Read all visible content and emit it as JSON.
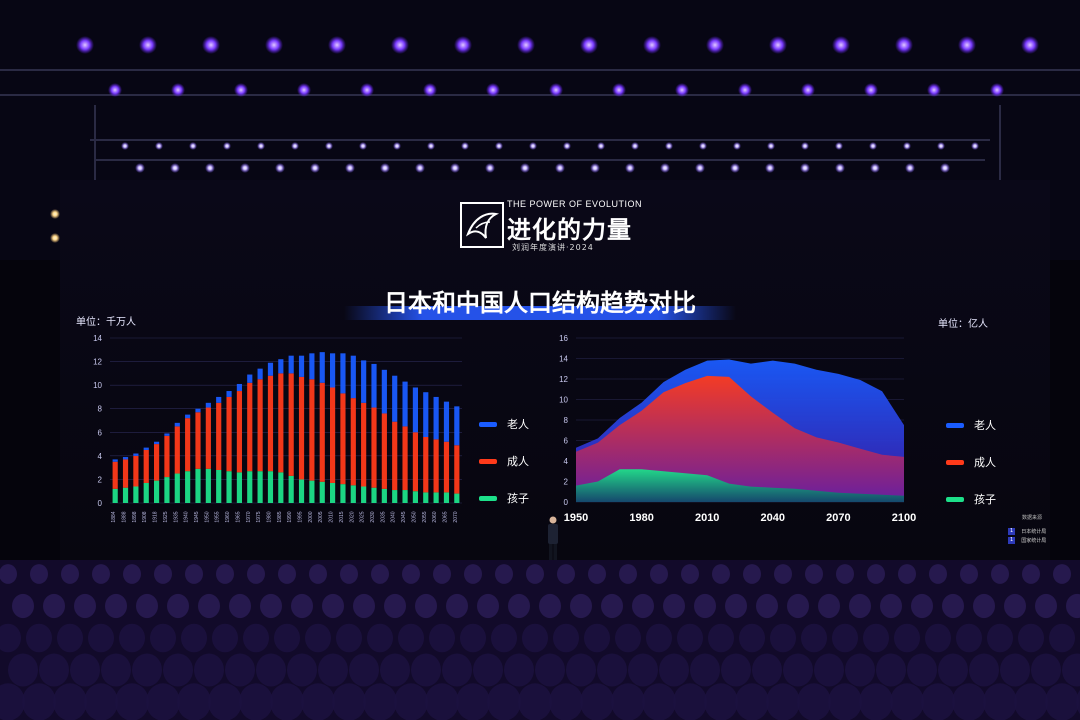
{
  "logo": {
    "tagline": "THE POWER OF EVOLUTION",
    "title": "进化的力量",
    "subtitle": "刘润年度演讲·2024"
  },
  "slide_title": "日本和中国人口结构趋势对比",
  "legend_labels": {
    "elderly": "老人",
    "adults": "成人",
    "children": "孩子"
  },
  "colors": {
    "elderly": "#1a5cff",
    "adults": "#ff3a1a",
    "children": "#1de08a",
    "title_bar": "#285aff"
  },
  "source": {
    "label": "数据来源",
    "items": [
      {
        "index": "1",
        "text": "日本统计局"
      },
      {
        "index": "1",
        "text": "国家统计局"
      }
    ]
  },
  "chart_data": [
    {
      "type": "bar",
      "stacked": true,
      "unit_label": "单位：千万人",
      "categories": [
        "1884",
        "1888",
        "1898",
        "1908",
        "1918",
        "1925",
        "1935",
        "1940",
        "1945",
        "1950",
        "1955",
        "1960",
        "1965",
        "1970",
        "1975",
        "1980",
        "1985",
        "1990",
        "1995",
        "2000",
        "2005",
        "2010",
        "2015",
        "2020",
        "2025",
        "2030",
        "2035",
        "2040",
        "2045",
        "2050",
        "2055",
        "2060",
        "2065",
        "2070"
      ],
      "series": [
        {
          "name": "孩子",
          "values": [
            1.2,
            1.3,
            1.4,
            1.7,
            1.9,
            2.2,
            2.5,
            2.7,
            2.9,
            2.9,
            2.8,
            2.7,
            2.6,
            2.7,
            2.7,
            2.7,
            2.6,
            2.3,
            2.0,
            1.9,
            1.8,
            1.7,
            1.6,
            1.5,
            1.4,
            1.3,
            1.2,
            1.1,
            1.1,
            1.0,
            0.9,
            0.9,
            0.9,
            0.8
          ]
        },
        {
          "name": "成人",
          "values": [
            2.3,
            2.4,
            2.6,
            2.8,
            3.1,
            3.5,
            4.0,
            4.5,
            4.8,
            5.2,
            5.7,
            6.3,
            6.9,
            7.5,
            7.8,
            8.1,
            8.4,
            8.7,
            8.7,
            8.6,
            8.4,
            8.1,
            7.7,
            7.4,
            7.1,
            6.8,
            6.4,
            5.8,
            5.4,
            5.0,
            4.7,
            4.5,
            4.3,
            4.1
          ]
        },
        {
          "name": "老人",
          "values": [
            0.2,
            0.2,
            0.2,
            0.2,
            0.2,
            0.2,
            0.3,
            0.3,
            0.3,
            0.4,
            0.5,
            0.5,
            0.6,
            0.7,
            0.9,
            1.1,
            1.2,
            1.5,
            1.8,
            2.2,
            2.6,
            2.9,
            3.4,
            3.6,
            3.6,
            3.7,
            3.7,
            3.9,
            3.8,
            3.8,
            3.8,
            3.6,
            3.4,
            3.3
          ]
        }
      ],
      "ylim": [
        0,
        14
      ],
      "yticks": [
        0,
        2,
        4,
        6,
        8,
        10,
        12,
        14
      ],
      "grid": true,
      "legend_position": "right"
    },
    {
      "type": "area",
      "stacked": true,
      "unit_label": "单位：亿人",
      "x": [
        1950,
        1960,
        1970,
        1980,
        1990,
        2000,
        2010,
        2020,
        2030,
        2040,
        2050,
        2060,
        2070,
        2080,
        2090,
        2100
      ],
      "series": [
        {
          "name": "孩子",
          "values": [
            1.6,
            2.0,
            3.2,
            3.2,
            3.0,
            2.8,
            2.6,
            1.8,
            1.5,
            1.4,
            1.3,
            1.1,
            0.9,
            0.8,
            0.7,
            0.6
          ]
        },
        {
          "name": "成人",
          "values": [
            3.3,
            3.8,
            4.3,
            5.7,
            7.7,
            8.8,
            9.7,
            10.4,
            8.8,
            7.3,
            5.9,
            5.2,
            4.9,
            4.4,
            3.9,
            3.8
          ]
        },
        {
          "name": "老人",
          "values": [
            0.4,
            0.4,
            0.7,
            0.8,
            1.0,
            1.3,
            1.5,
            1.7,
            3.2,
            5.1,
            6.3,
            6.6,
            6.7,
            6.7,
            6.2,
            3.1
          ]
        }
      ],
      "xticks": [
        1950,
        1980,
        2010,
        2040,
        2070,
        2100
      ],
      "ylim": [
        0,
        16
      ],
      "yticks": [
        0,
        2,
        4,
        6,
        8,
        10,
        12,
        14,
        16
      ],
      "grid": true,
      "legend_position": "right"
    }
  ]
}
